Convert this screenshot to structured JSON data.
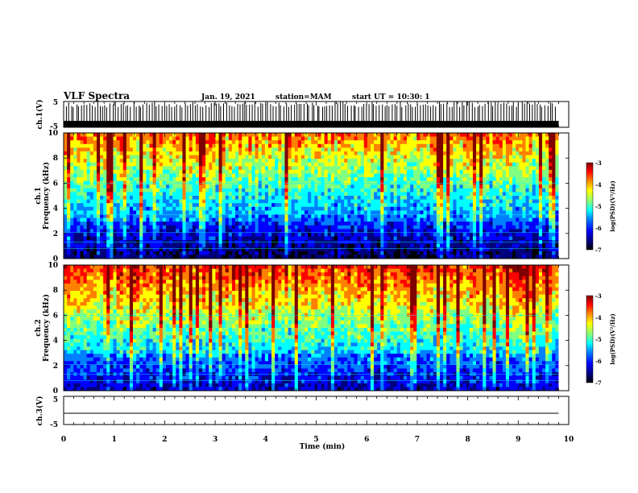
{
  "header": {
    "title": "VLF Spectra",
    "date": "Jan. 19, 2021",
    "station": "station=MAM",
    "start": "start UT =   10:30: 1"
  },
  "colors": {
    "cmap": [
      "#000000",
      "#00007f",
      "#0000ff",
      "#0080ff",
      "#00ffff",
      "#80ff80",
      "#ffff00",
      "#ff8000",
      "#ff0000",
      "#7f0000"
    ],
    "trace": "#000000",
    "tick_grid": "#000000"
  },
  "chart_data": [
    {
      "type": "line",
      "panel": "ch1-waveform",
      "ylabel": "ch.1(V)",
      "ylim": [
        -5,
        5
      ],
      "yticks": [
        "5",
        "-5"
      ],
      "description_values": {
        "amplitude_range": [
          -5,
          5
        ],
        "burst_count": 190
      }
    },
    {
      "type": "heatmap",
      "panel": "ch1-spectrogram",
      "ylabel_line1": "ch.1",
      "ylabel_line2": "Frequency (kHz)",
      "ylim": [
        0,
        10
      ],
      "yticks": [
        "0",
        "2",
        "4",
        "6",
        "8",
        "10"
      ],
      "colorbar": {
        "label": "log(PSD)(V²/Hz)",
        "range": [
          -7,
          -3
        ],
        "ticks": [
          "-3",
          "-4",
          "-5",
          "-6",
          "-7"
        ]
      }
    },
    {
      "type": "heatmap",
      "panel": "ch2-spectrogram",
      "ylabel_line1": "ch.2",
      "ylabel_line2": "Frequency (kHz)",
      "ylim": [
        0,
        10
      ],
      "yticks": [
        "0",
        "2",
        "4",
        "6",
        "8",
        "10"
      ],
      "colorbar": {
        "label": "log(PSD)(V²/Hz)",
        "range": [
          -7,
          -3
        ],
        "ticks": [
          "-3",
          "-4",
          "-5",
          "-6",
          "-7"
        ]
      }
    },
    {
      "type": "line",
      "panel": "ch3-waveform",
      "ylabel": "ch.3(V)",
      "ylim": [
        -5,
        5
      ],
      "yticks": [
        "5",
        "-5"
      ],
      "series": [
        {
          "x": [
            0,
            9.8
          ],
          "y": [
            -1,
            -1
          ]
        }
      ]
    }
  ],
  "xaxis": {
    "label": "Time (min)",
    "range": [
      0,
      10
    ],
    "ticks": [
      "0",
      "1",
      "2",
      "3",
      "4",
      "5",
      "6",
      "7",
      "8",
      "9",
      "10"
    ],
    "data_end": 9.8
  }
}
